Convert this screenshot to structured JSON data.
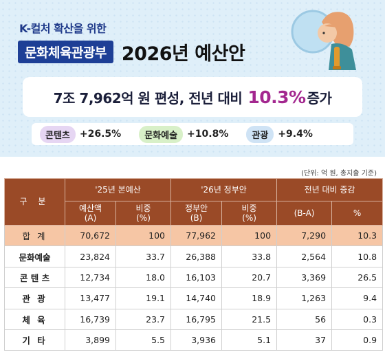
{
  "banner": {
    "pre_title": "K-컬처 확산을 위한",
    "ministry": "문화체육관광부",
    "year_title": "2026년 예산안",
    "summary_prefix": "7조 7,962억 원 편성, 전년 대비",
    "summary_pct": "10.3%",
    "summary_suffix": "증가",
    "categories": [
      {
        "label": "콘텐츠",
        "value": "+26.5%",
        "color": "#e6d6f3"
      },
      {
        "label": "문화예술",
        "value": "+10.8%",
        "color": "#d8f0c8"
      },
      {
        "label": "관광",
        "value": "+9.4%",
        "color": "#cfe3f5"
      }
    ]
  },
  "unit_note": "(단위: 억 원, 총지출 기준)",
  "table": {
    "header_category": "구 분",
    "groups": [
      "'25년 본예산",
      "'26년 정부안",
      "전년 대비 증감"
    ],
    "subheaders": [
      "예산액\n(A)",
      "비중\n(%)",
      "정부안\n(B)",
      "비중\n(%)",
      "(B-A)",
      "%"
    ],
    "rows": [
      {
        "label": "합 계",
        "values": [
          "70,672",
          "100",
          "77,962",
          "100",
          "7,290",
          "10.3"
        ]
      },
      {
        "label": "문화예술",
        "values": [
          "23,824",
          "33.7",
          "26,388",
          "33.8",
          "2,564",
          "10.8"
        ]
      },
      {
        "label": "콘 텐 츠",
        "values": [
          "12,734",
          "18.0",
          "16,103",
          "20.7",
          "3,369",
          "26.5"
        ]
      },
      {
        "label": "관 광",
        "values": [
          "13,477",
          "19.1",
          "14,740",
          "18.9",
          "1,263",
          "9.4"
        ]
      },
      {
        "label": "체 육",
        "values": [
          "16,739",
          "23.7",
          "16,795",
          "21.5",
          "56",
          "0.3"
        ]
      },
      {
        "label": "기 타",
        "values": [
          "3,899",
          "5.5",
          "3,936",
          "5.1",
          "37",
          "0.9"
        ]
      }
    ]
  },
  "colors": {
    "header_brown": "#9a4a27",
    "total_row": "#f6c6a5",
    "accent_magenta": "#a3278f",
    "ministry_navy": "#1e3f96"
  }
}
